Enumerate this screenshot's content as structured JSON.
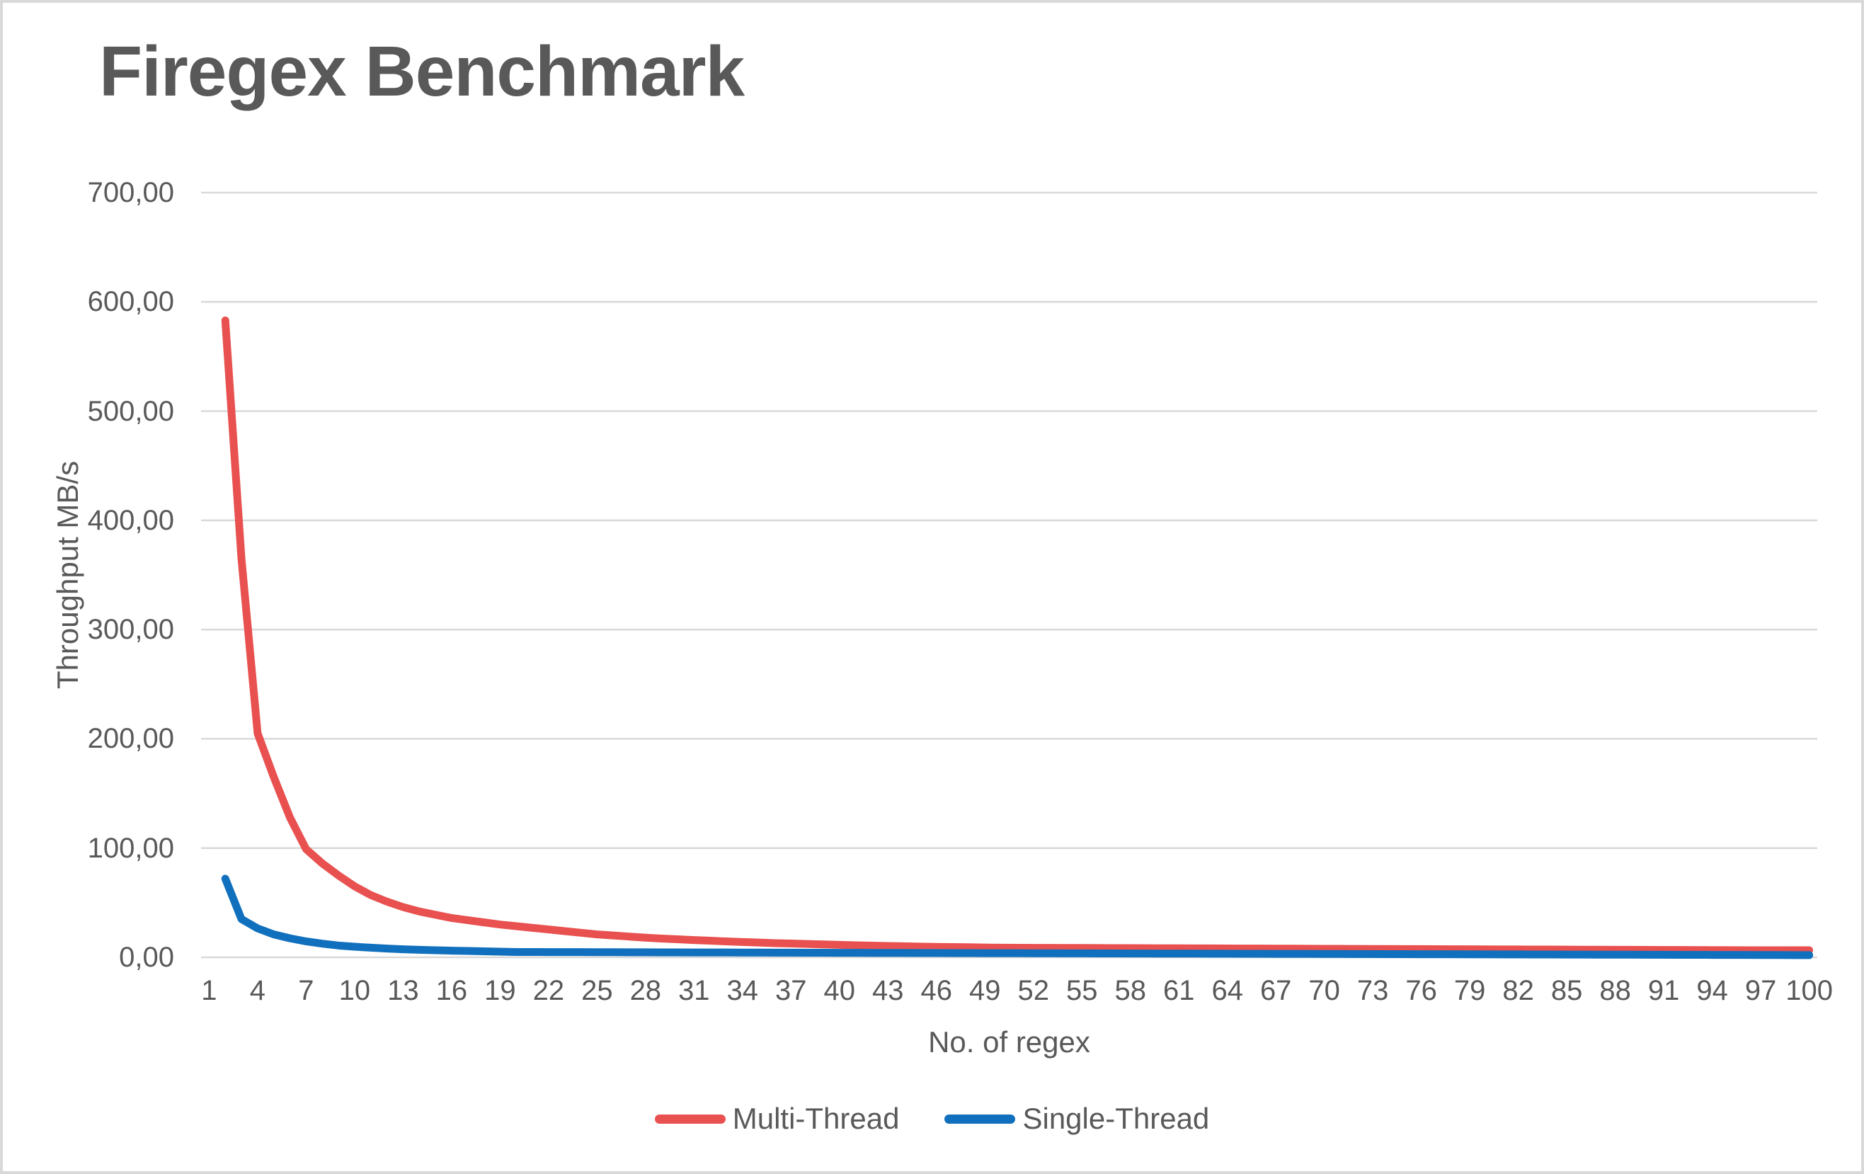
{
  "chart_data": {
    "type": "line",
    "title": "Firegex Benchmark",
    "xlabel": "No. of regex",
    "ylabel": "Throughput MB/s",
    "grid": true,
    "legend_position": "bottom",
    "colors": {
      "text": "#595959",
      "gridline": "#d9d9d9",
      "multi_thread": "#e8514f",
      "single_thread": "#1070be"
    },
    "ylim": [
      0,
      700
    ],
    "y_tick_values": [
      0,
      100,
      200,
      300,
      400,
      500,
      600,
      700
    ],
    "y_tick_labels": [
      "0,00",
      "100,00",
      "200,00",
      "300,00",
      "400,00",
      "500,00",
      "600,00",
      "700,00"
    ],
    "x_category_count": 100,
    "x_tick_labels": [
      1,
      4,
      7,
      10,
      13,
      16,
      19,
      22,
      25,
      28,
      31,
      34,
      37,
      40,
      43,
      46,
      49,
      52,
      55,
      58,
      61,
      64,
      67,
      70,
      73,
      76,
      79,
      82,
      85,
      88,
      91,
      94,
      97,
      100
    ],
    "x": [
      2,
      3,
      4,
      5,
      6,
      7,
      8,
      9,
      10,
      11,
      12,
      13,
      14,
      15,
      16,
      17,
      18,
      19,
      20,
      21,
      22,
      23,
      24,
      25,
      26,
      27,
      28,
      29,
      30,
      31,
      32,
      33,
      34,
      35,
      36,
      37,
      38,
      39,
      40,
      41,
      42,
      43,
      44,
      45,
      46,
      47,
      48,
      49,
      50,
      51,
      52,
      53,
      54,
      55,
      56,
      57,
      58,
      59,
      60,
      61,
      62,
      63,
      64,
      65,
      66,
      67,
      68,
      69,
      70,
      71,
      72,
      73,
      74,
      75,
      76,
      77,
      78,
      79,
      80,
      81,
      82,
      83,
      84,
      85,
      86,
      87,
      88,
      89,
      90,
      91,
      92,
      93,
      94,
      95,
      96,
      97,
      98,
      99,
      100
    ],
    "series": [
      {
        "name": "Multi-Thread",
        "color": "#e8514f",
        "values": [
          583,
          365,
          205,
          165,
          128,
          99,
          86,
          75,
          65,
          57,
          51,
          46,
          42,
          39,
          36,
          34,
          32,
          30,
          28.5,
          27,
          25.5,
          24,
          22.5,
          21,
          20,
          19,
          18,
          17.2,
          16.5,
          15.8,
          15.2,
          14.6,
          14,
          13.5,
          13,
          12.6,
          12.2,
          11.8,
          11.4,
          11,
          10.7,
          10.4,
          10.1,
          9.8,
          9.6,
          9.4,
          9.2,
          9,
          8.8,
          8.75,
          8.7,
          8.65,
          8.6,
          8.55,
          8.5,
          8.45,
          8.4,
          8.35,
          8.3,
          8.25,
          8.2,
          8.15,
          8.1,
          8.05,
          8,
          7.95,
          7.9,
          7.85,
          7.8,
          7.75,
          7.7,
          7.65,
          7.6,
          7.55,
          7.5,
          7.45,
          7.4,
          7.35,
          7.3,
          7.25,
          7.2,
          7.15,
          7.1,
          7.05,
          7,
          6.95,
          6.9,
          6.85,
          6.8,
          6.75,
          6.7,
          6.65,
          6.6,
          6.55,
          6.5,
          6.5,
          6.5,
          6.5,
          6.5
        ]
      },
      {
        "name": "Single-Thread",
        "color": "#1070be",
        "values": [
          72,
          35,
          26.5,
          21,
          17.4,
          14.6,
          12.5,
          10.8,
          9.7,
          8.8,
          8,
          7.4,
          6.9,
          6.5,
          6.1,
          5.8,
          5.5,
          5.2,
          4.9,
          4.85,
          4.81,
          4.78,
          4.74,
          4.7,
          4.67,
          4.63,
          4.6,
          4.56,
          4.52,
          4.49,
          4.45,
          4.42,
          4.38,
          4.34,
          4.31,
          4.27,
          4.24,
          4.2,
          4.16,
          4.13,
          4.09,
          4.06,
          4.02,
          3.98,
          3.95,
          3.91,
          3.88,
          3.84,
          3.8,
          3.77,
          3.73,
          3.7,
          3.66,
          3.62,
          3.59,
          3.55,
          3.52,
          3.48,
          3.44,
          3.41,
          3.37,
          3.34,
          3.3,
          3.26,
          3.23,
          3.19,
          3.16,
          3.12,
          3.08,
          3.05,
          3.01,
          2.98,
          2.94,
          2.9,
          2.87,
          2.83,
          2.8,
          2.76,
          2.72,
          2.69,
          2.65,
          2.62,
          2.58,
          2.54,
          2.51,
          2.47,
          2.44,
          2.4,
          2.36,
          2.33,
          2.29,
          2.26,
          2.22,
          2.18,
          2.15,
          2.11,
          2.08,
          2.04,
          2
        ]
      }
    ]
  }
}
